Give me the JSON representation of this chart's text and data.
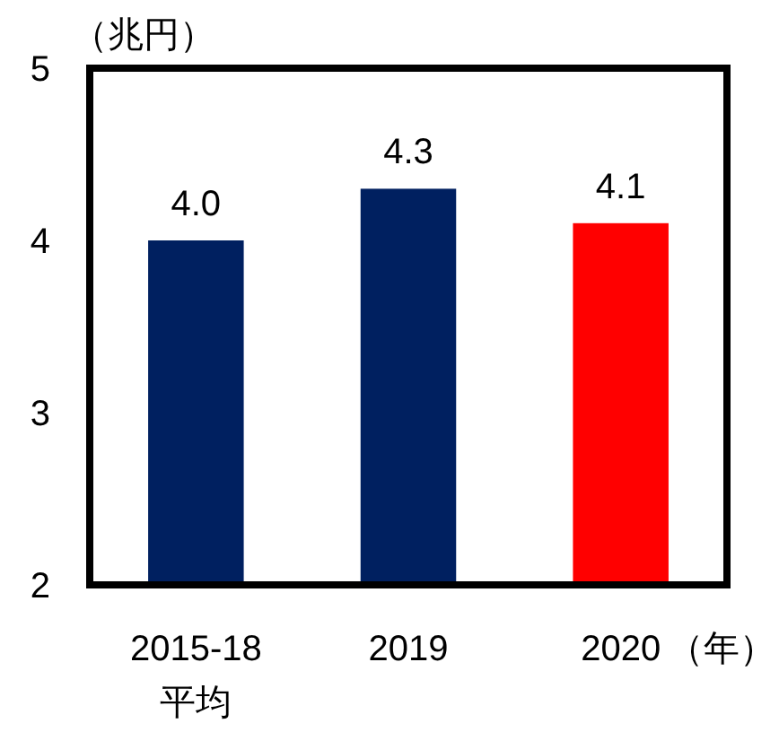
{
  "chart_data": {
    "type": "bar",
    "ylabel": "（兆円）",
    "xlabel": "（年）",
    "categories": [
      "2015-18\n平均",
      "2019",
      "2020"
    ],
    "values": [
      4.0,
      4.3,
      4.1
    ],
    "value_labels": [
      "4.0",
      "4.3",
      "4.1"
    ],
    "colors": [
      "#002060",
      "#002060",
      "#ff0000"
    ],
    "ylim": [
      2,
      5
    ],
    "yticks": [
      2,
      3,
      4,
      5
    ],
    "grid": false
  }
}
